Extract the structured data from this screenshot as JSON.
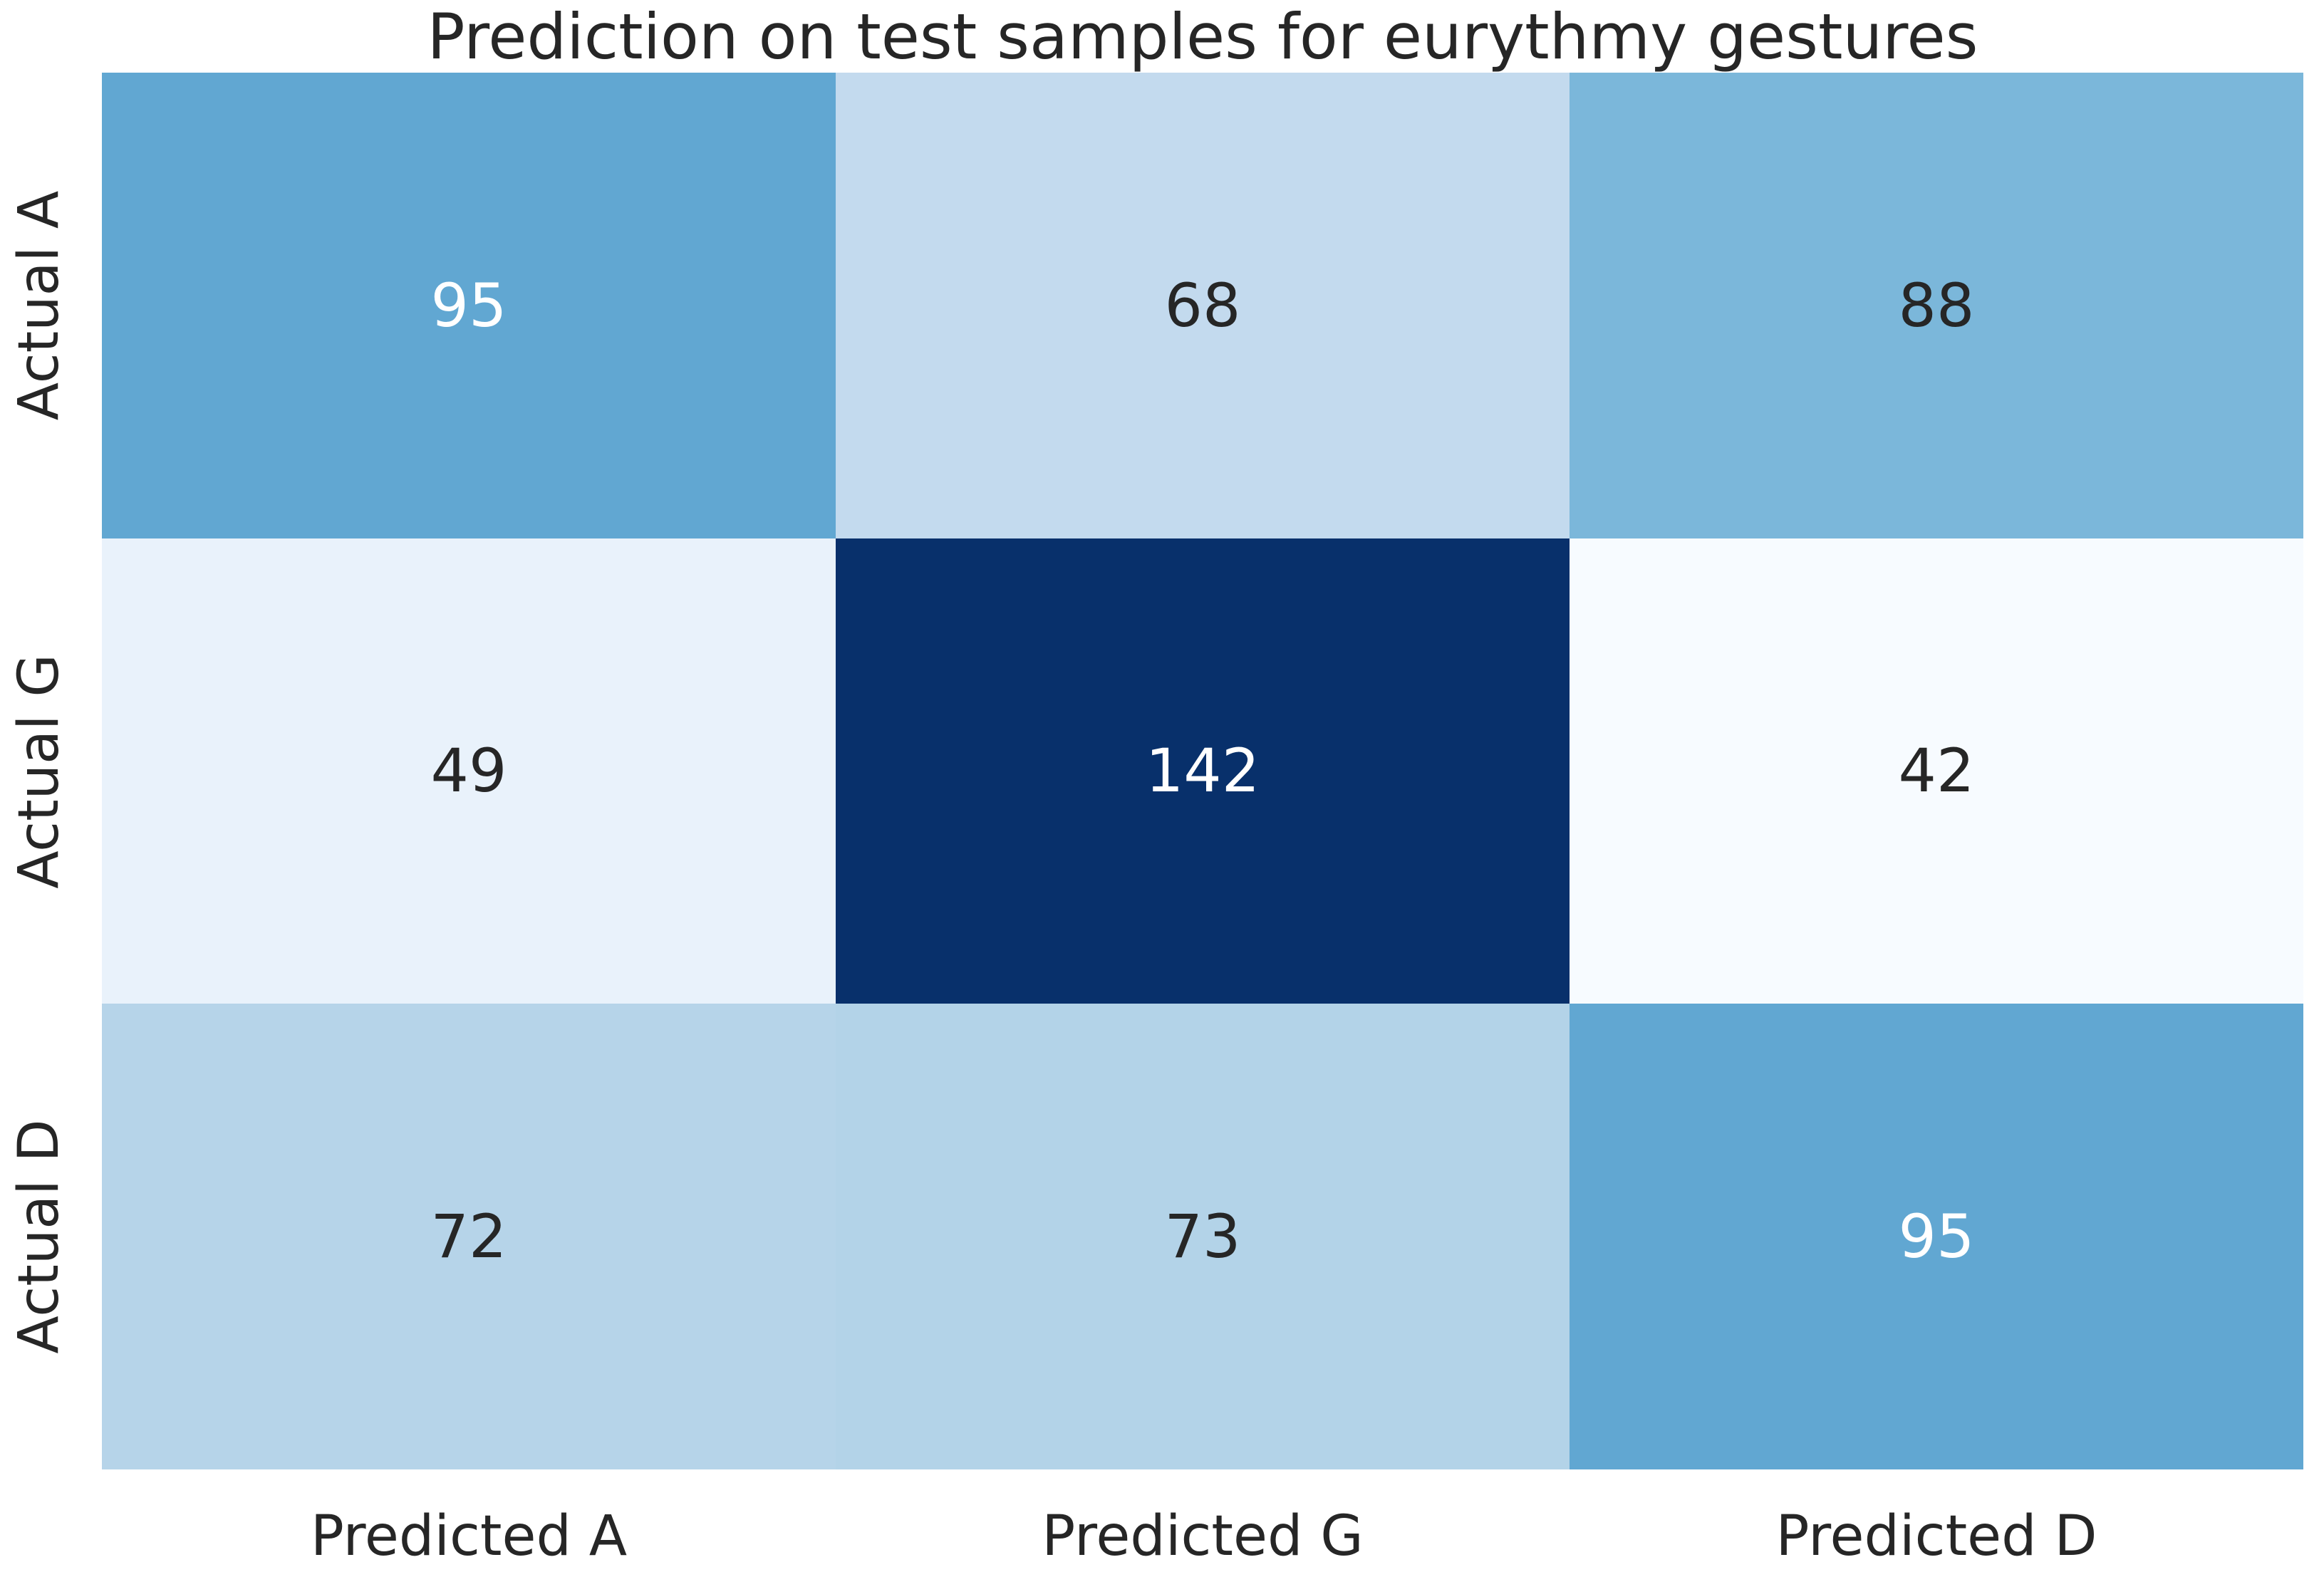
{
  "chart_data": {
    "type": "heatmap",
    "title": "Prediction on test samples for eurythmy gestures",
    "row_labels": [
      "Actual A",
      "Actual G",
      "Actual D"
    ],
    "col_labels": [
      "Predicted A",
      "Predicted G",
      "Predicted D"
    ],
    "matrix": [
      [
        95,
        68,
        88
      ],
      [
        49,
        142,
        42
      ],
      [
        72,
        73,
        95
      ]
    ],
    "colormap": "Blues",
    "vmin": 42,
    "vmax": 142,
    "grid": "off",
    "legend": "none",
    "cell_colors": [
      [
        "#61a7d2",
        "#c3daee",
        "#7bb7da"
      ],
      [
        "#e9f2fb",
        "#08306b",
        "#f7fbff"
      ],
      [
        "#b6d4e9",
        "#b3d3e8",
        "#61a7d2"
      ]
    ],
    "cell_text_colors": [
      [
        "#ffffff",
        "#262626",
        "#262626"
      ],
      [
        "#262626",
        "#ffffff",
        "#262626"
      ],
      [
        "#262626",
        "#262626",
        "#ffffff"
      ]
    ],
    "label_color": "#262626",
    "background": "#ffffff"
  }
}
